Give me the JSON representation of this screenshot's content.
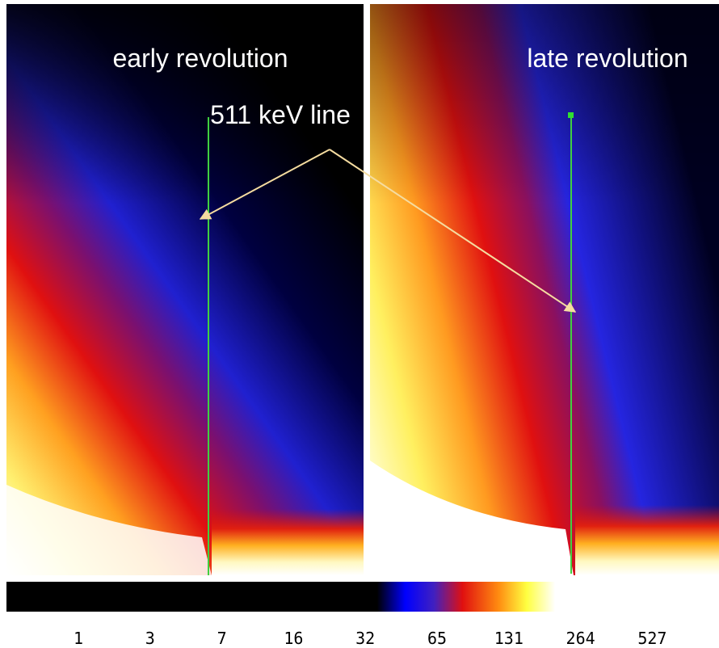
{
  "panels": [
    {
      "label": "early revolution"
    },
    {
      "label": "late revolution"
    }
  ],
  "annotation": "511 keV line",
  "colorbar": {
    "tick_labels": [
      "1",
      "3",
      "7",
      "16",
      "32",
      "65",
      "131",
      "264",
      "527"
    ]
  }
}
